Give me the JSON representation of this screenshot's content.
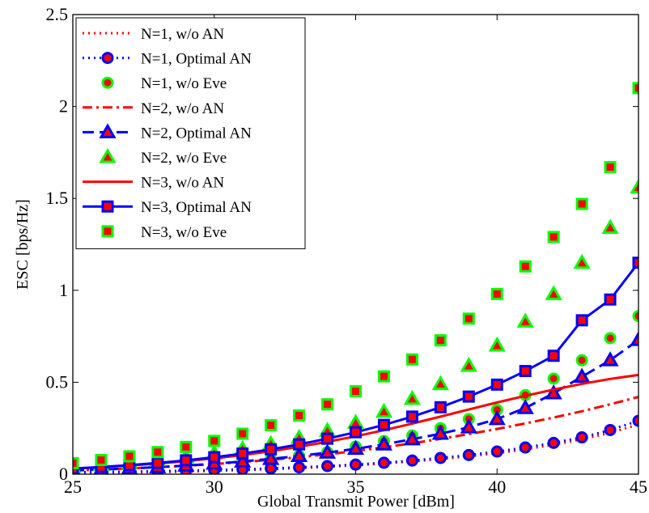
{
  "chart_data": {
    "type": "line",
    "title": "",
    "xlabel": "Global Transmit Power [dBm]",
    "ylabel": "ESC [bps/Hz]",
    "xlim": [
      25,
      45
    ],
    "ylim": [
      0,
      2.5
    ],
    "xticks": [
      25,
      30,
      35,
      40,
      45
    ],
    "xtick_labels": [
      "25",
      "30",
      "35",
      "40",
      "45"
    ],
    "yticks": [
      0,
      0.5,
      1,
      1.5,
      2,
      2.5
    ],
    "ytick_labels": [
      "0",
      "0.5",
      "1",
      "1.5",
      "2",
      "2.5"
    ],
    "grid": false,
    "legend_position": "top-left",
    "x": [
      25,
      26,
      27,
      28,
      29,
      30,
      31,
      32,
      33,
      34,
      35,
      36,
      37,
      38,
      39,
      40,
      41,
      42,
      43,
      44,
      45
    ],
    "series": [
      {
        "name": "N=1, w/o AN",
        "line": "dotted",
        "line_color": "#ff0000",
        "marker": "none",
        "values": [
          0.005,
          0.007,
          0.009,
          0.011,
          0.014,
          0.018,
          0.022,
          0.027,
          0.033,
          0.04,
          0.048,
          0.058,
          0.069,
          0.082,
          0.097,
          0.114,
          0.135,
          0.16,
          0.19,
          0.225,
          0.27
        ]
      },
      {
        "name": "N=1, Optimal AN",
        "line": "dotted",
        "line_color": "#0000ff",
        "marker": "circle",
        "marker_face": "#ff0000",
        "marker_edge": "#0000ff",
        "values": [
          0.01,
          0.012,
          0.014,
          0.016,
          0.019,
          0.022,
          0.026,
          0.031,
          0.037,
          0.044,
          0.052,
          0.062,
          0.074,
          0.088,
          0.104,
          0.123,
          0.145,
          0.17,
          0.2,
          0.24,
          0.29
        ]
      },
      {
        "name": "N=1, w/o Eve",
        "line": "none",
        "marker": "circle",
        "marker_face": "#ff0000",
        "marker_edge": "#00ff00",
        "values": [
          0.02,
          0.025,
          0.03,
          0.037,
          0.045,
          0.055,
          0.067,
          0.082,
          0.1,
          0.12,
          0.15,
          0.18,
          0.21,
          0.25,
          0.3,
          0.35,
          0.43,
          0.52,
          0.62,
          0.74,
          0.86
        ]
      },
      {
        "name": "N=2, w/o AN",
        "line": "dashdot",
        "line_color": "#ff0000",
        "marker": "none",
        "values": [
          0.02,
          0.025,
          0.031,
          0.038,
          0.046,
          0.055,
          0.066,
          0.078,
          0.092,
          0.108,
          0.126,
          0.146,
          0.168,
          0.192,
          0.218,
          0.246,
          0.276,
          0.308,
          0.342,
          0.38,
          0.42
        ]
      },
      {
        "name": "N=2, Optimal AN",
        "line": "dashed",
        "line_color": "#0000ff",
        "marker": "triangle",
        "marker_face": "#ff0000",
        "marker_edge": "#0000ff",
        "values": [
          0.02,
          0.025,
          0.031,
          0.038,
          0.047,
          0.057,
          0.069,
          0.083,
          0.099,
          0.117,
          0.138,
          0.162,
          0.19,
          0.22,
          0.255,
          0.3,
          0.36,
          0.44,
          0.53,
          0.62,
          0.73
        ]
      },
      {
        "name": "N=2, w/o Eve",
        "line": "none",
        "marker": "triangle",
        "marker_face": "#ff0000",
        "marker_edge": "#00ff00",
        "values": [
          0.04,
          0.05,
          0.062,
          0.076,
          0.093,
          0.113,
          0.137,
          0.165,
          0.198,
          0.236,
          0.28,
          0.34,
          0.41,
          0.49,
          0.59,
          0.7,
          0.83,
          0.98,
          1.15,
          1.34,
          1.56
        ]
      },
      {
        "name": "N=3, w/o AN",
        "line": "solid",
        "line_color": "#ff0000",
        "marker": "none",
        "values": [
          0.03,
          0.038,
          0.047,
          0.058,
          0.071,
          0.086,
          0.104,
          0.125,
          0.149,
          0.176,
          0.206,
          0.239,
          0.275,
          0.313,
          0.352,
          0.39,
          0.426,
          0.46,
          0.491,
          0.518,
          0.54
        ]
      },
      {
        "name": "N=3, Optimal AN",
        "line": "solid",
        "line_color": "#0000ff",
        "marker": "square",
        "marker_face": "#ff0000",
        "marker_edge": "#0000ff",
        "values": [
          0.03,
          0.039,
          0.049,
          0.061,
          0.075,
          0.092,
          0.112,
          0.135,
          0.162,
          0.193,
          0.228,
          0.268,
          0.313,
          0.364,
          0.422,
          0.487,
          0.561,
          0.644,
          0.837,
          0.95,
          1.15
        ]
      },
      {
        "name": "N=3, w/o Eve",
        "line": "none",
        "marker": "square",
        "marker_face": "#ff0000",
        "marker_edge": "#00ff00",
        "values": [
          0.06,
          0.077,
          0.097,
          0.12,
          0.148,
          0.181,
          0.22,
          0.266,
          0.319,
          0.38,
          0.451,
          0.532,
          0.624,
          0.728,
          0.846,
          0.98,
          1.13,
          1.29,
          1.47,
          1.67,
          2.1
        ]
      }
    ]
  }
}
